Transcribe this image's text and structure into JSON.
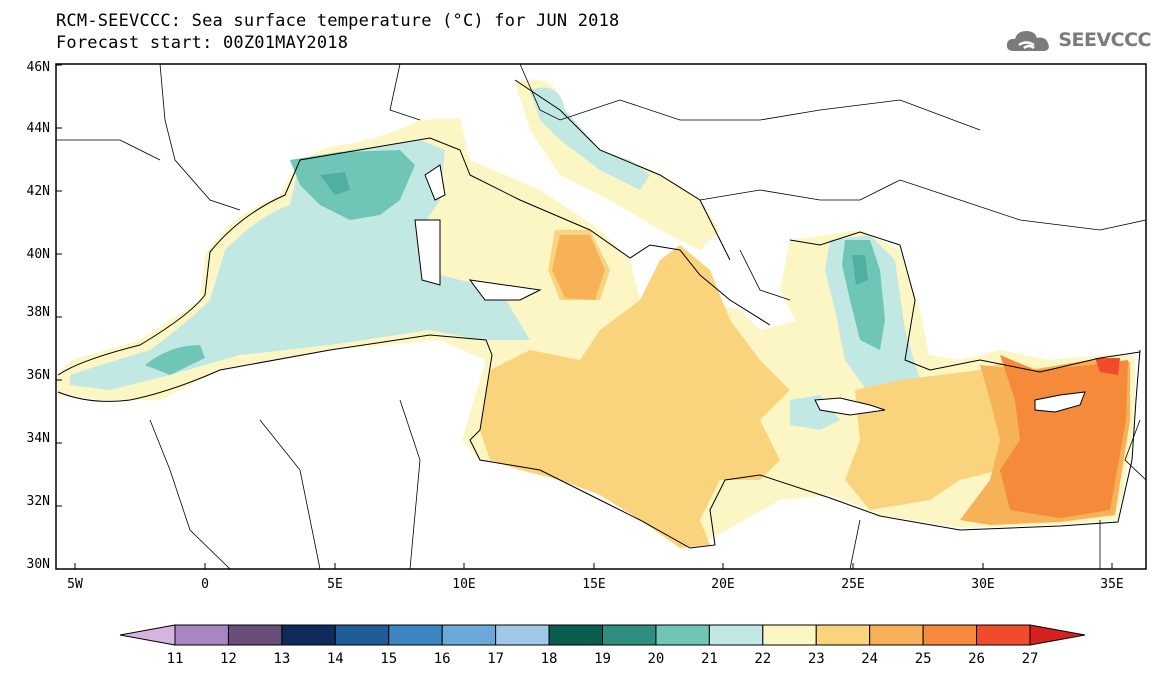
{
  "title": {
    "line1": "RCM-SEEVCCC: Sea surface temperature (°C) for JUN 2018",
    "line2": "Forecast start: 00Z01MAY2018"
  },
  "logo": {
    "text": "SEEVCCC",
    "icon": "cloud-icon"
  },
  "axes": {
    "lon_labels": [
      "5W",
      "0",
      "5E",
      "10E",
      "15E",
      "20E",
      "25E",
      "30E",
      "35E"
    ],
    "lat_labels": [
      "30N",
      "32N",
      "34N",
      "36N",
      "38N",
      "40N",
      "42N",
      "44N",
      "46N"
    ]
  },
  "colorbar": {
    "colors": [
      "#d6b4e0",
      "#a886c2",
      "#6a4d78",
      "#0f2b5c",
      "#1f5d99",
      "#3d86c2",
      "#6aa9d8",
      "#9fc9e6",
      "#0a5e50",
      "#2e8f80",
      "#70c6b6",
      "#c2e8e3",
      "#fcf6c4",
      "#f9d47c",
      "#f7b157",
      "#f58a3a",
      "#ef4b2c",
      "#d72020"
    ],
    "labels": [
      "11",
      "12",
      "13",
      "14",
      "15",
      "16",
      "17",
      "18",
      "19",
      "20",
      "21",
      "22",
      "23",
      "24",
      "25",
      "26",
      "27"
    ]
  },
  "sst_colors": {
    "c19": "#4fb0a0",
    "c20": "#70c6b6",
    "c21": "#c2e8e3",
    "c22": "#fcf6c4",
    "c23": "#f9d47c",
    "c24": "#f7b157",
    "c25": "#f58a3a",
    "c26": "#ef4b2c"
  }
}
